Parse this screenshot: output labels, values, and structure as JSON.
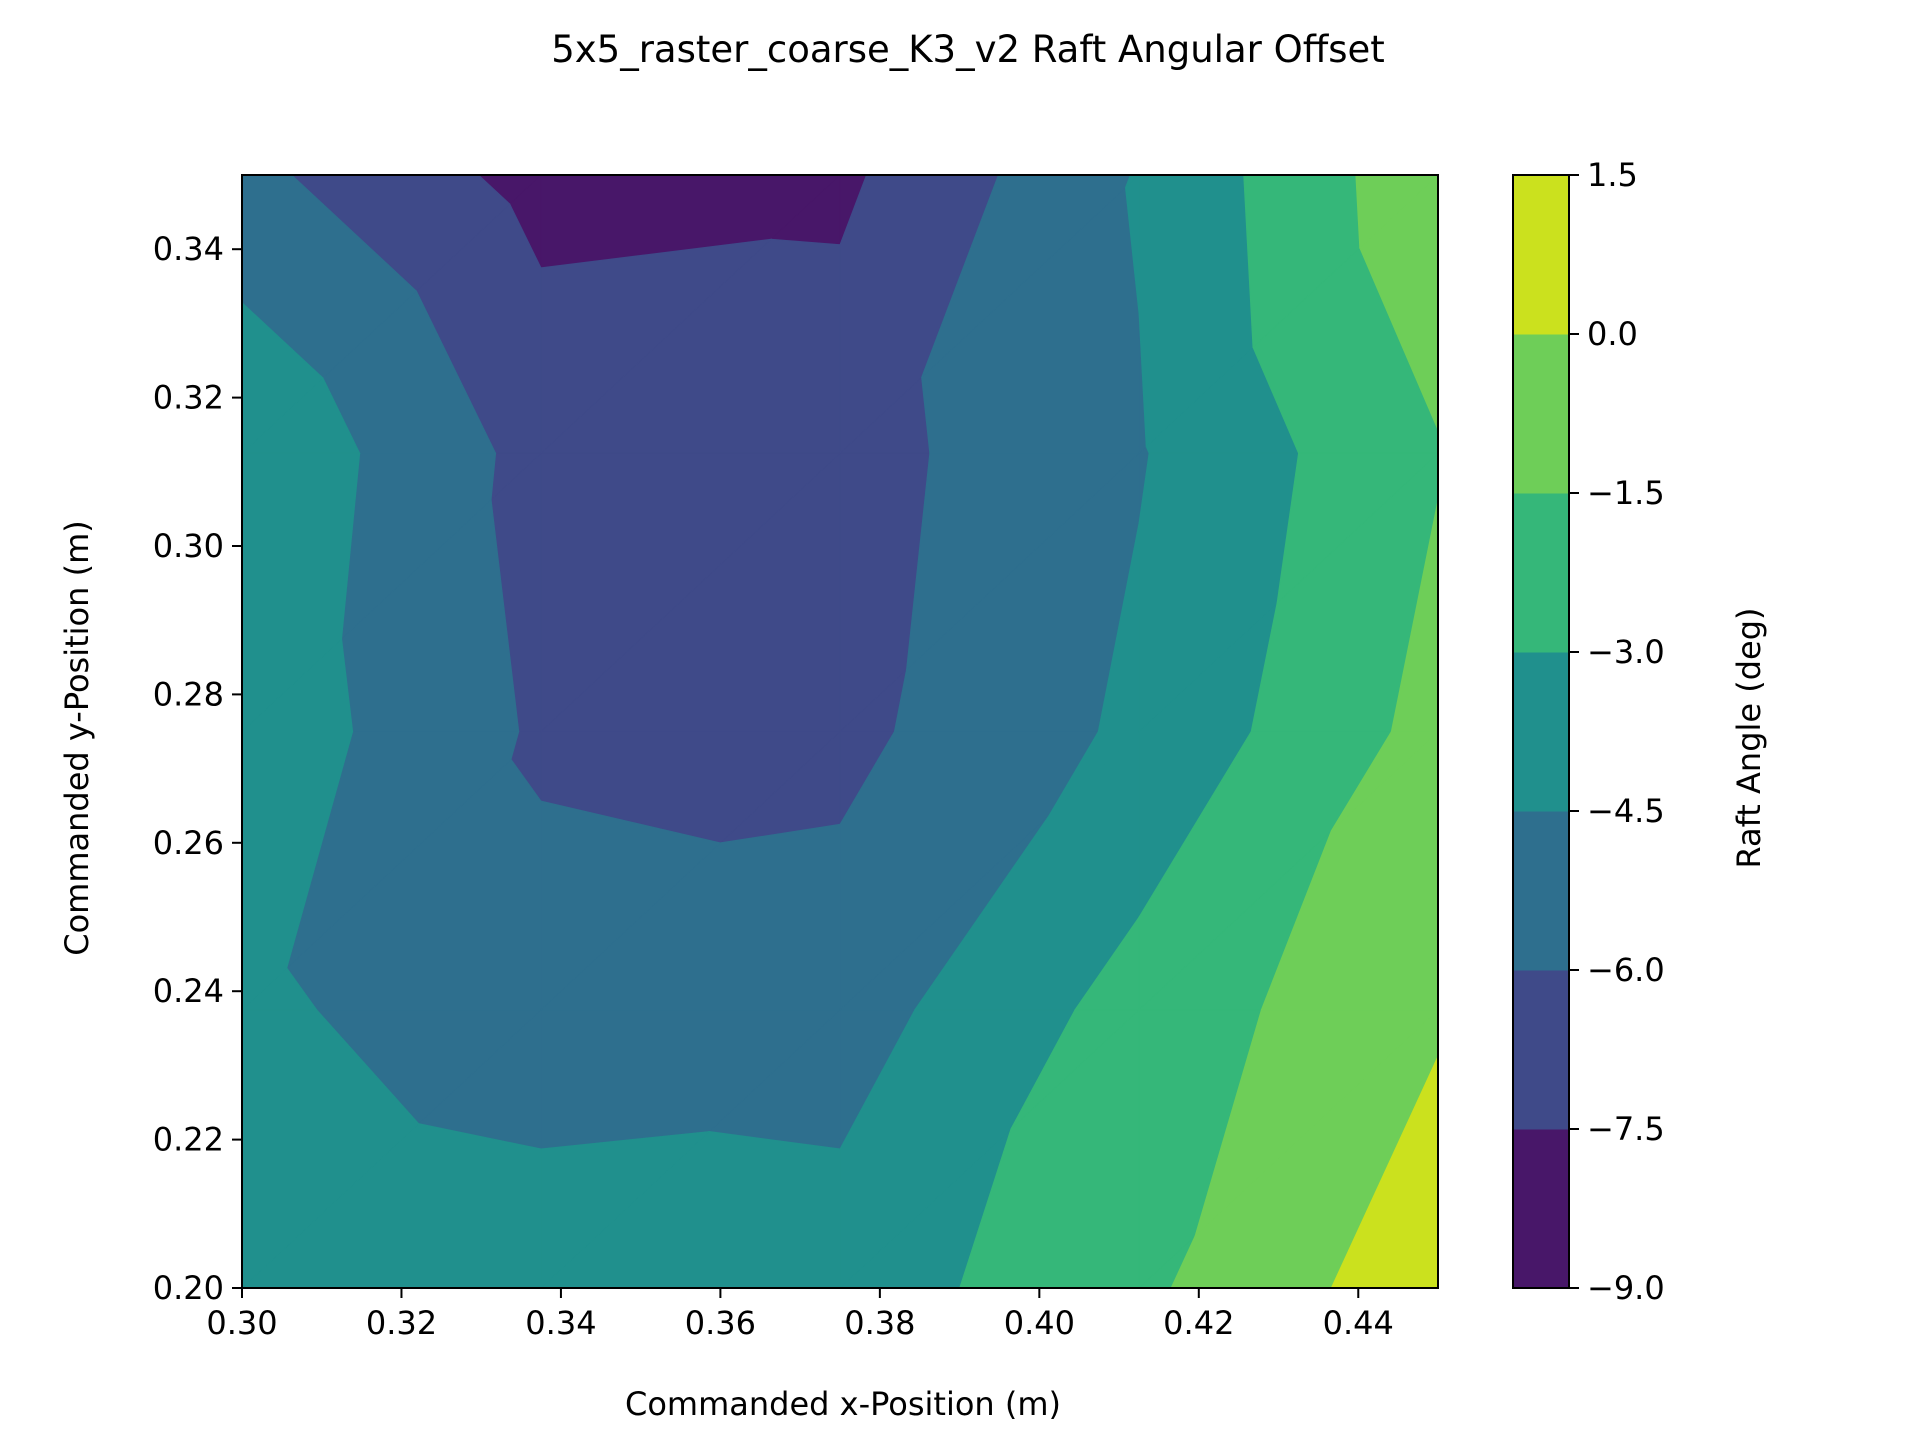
{
  "chart_data": {
    "type": "contourf",
    "title": "5x5_raster_coarse_K3_v2 Raft Angular Offset",
    "xlabel": "Commanded x-Position (m)",
    "ylabel": "Commanded y-Position (m)",
    "xlim": [
      0.3,
      0.45
    ],
    "ylim": [
      0.2,
      0.35
    ],
    "xticks": [
      0.3,
      0.32,
      0.34,
      0.36,
      0.38,
      0.4,
      0.42,
      0.44
    ],
    "xtick_labels": [
      "0.30",
      "0.32",
      "0.34",
      "0.36",
      "0.38",
      "0.40",
      "0.42",
      "0.44"
    ],
    "yticks": [
      0.2,
      0.22,
      0.24,
      0.26,
      0.28,
      0.3,
      0.32,
      0.34
    ],
    "ytick_labels": [
      "0.20",
      "0.22",
      "0.24",
      "0.26",
      "0.28",
      "0.30",
      "0.32",
      "0.34"
    ],
    "x": [
      0.3,
      0.3375,
      0.375,
      0.4125,
      0.45
    ],
    "y": [
      0.2,
      0.2375,
      0.275,
      0.3125,
      0.35
    ],
    "z": [
      [
        -3.2,
        -3.6,
        -3.8,
        -1.8,
        1.0
      ],
      [
        -4.2,
        -5.4,
        -5.2,
        -2.4,
        -0.2
      ],
      [
        -3.5,
        -6.2,
        -6.4,
        -4.2,
        -1.0
      ],
      [
        -3.2,
        -6.5,
        -6.6,
        -4.6,
        -1.6
      ],
      [
        -5.6,
        -8.0,
        -7.8,
        -4.4,
        -0.4
      ]
    ],
    "levels": [
      -9.0,
      -7.5,
      -6.0,
      -4.5,
      -3.0,
      -1.5,
      0.0,
      1.5
    ],
    "colormap": "viridis",
    "level_colors": [
      "#481769",
      "#3f4a89",
      "#2e6f8e",
      "#20908d",
      "#35b779",
      "#6ece58",
      "#cbe11e"
    ],
    "colorbar": {
      "label": "Raft Angle (deg)",
      "tick_labels": [
        "1.5",
        "0.0",
        "−1.5",
        "−3.0",
        "−4.5",
        "−6.0",
        "−7.5",
        "−9.0"
      ]
    }
  }
}
